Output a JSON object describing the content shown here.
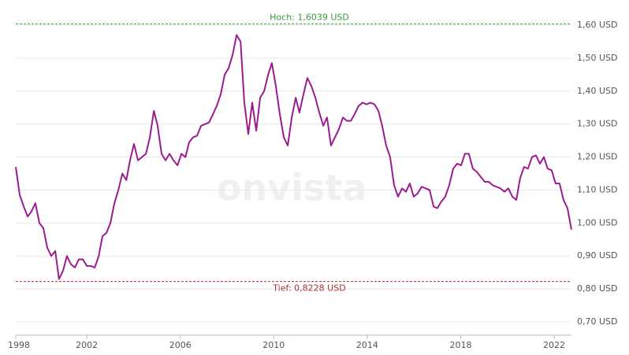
{
  "chart_data": {
    "type": "line",
    "watermark": "onvista",
    "x": [
      1998.96,
      1999.13,
      1999.3,
      1999.47,
      1999.63,
      1999.8,
      1999.97,
      2000.14,
      2000.31,
      2000.48,
      2000.65,
      2000.81,
      2000.98,
      2001.15,
      2001.32,
      2001.49,
      2001.66,
      2001.83,
      2002.0,
      2002.17,
      2002.34,
      2002.51,
      2002.67,
      2002.84,
      2003.01,
      2003.18,
      2003.35,
      2003.52,
      2003.69,
      2003.85,
      2004.02,
      2004.19,
      2004.36,
      2004.53,
      2004.7,
      2004.87,
      2005.03,
      2005.2,
      2005.37,
      2005.54,
      2005.71,
      2005.88,
      2006.05,
      2006.22,
      2006.38,
      2006.55,
      2006.72,
      2006.89,
      2007.06,
      2007.23,
      2007.4,
      2007.56,
      2007.73,
      2007.9,
      2008.07,
      2008.24,
      2008.41,
      2008.58,
      2008.74,
      2008.91,
      2009.08,
      2009.25,
      2009.42,
      2009.59,
      2009.76,
      2009.92,
      2010.09,
      2010.26,
      2010.43,
      2010.6,
      2010.77,
      2010.94,
      2011.1,
      2011.27,
      2011.44,
      2011.61,
      2011.78,
      2011.95,
      2012.12,
      2012.28,
      2012.45,
      2012.62,
      2012.79,
      2012.96,
      2013.13,
      2013.3,
      2013.46,
      2013.63,
      2013.8,
      2013.97,
      2014.14,
      2014.31,
      2014.48,
      2014.64,
      2014.81,
      2014.98,
      2015.15,
      2015.32,
      2015.49,
      2015.66,
      2015.82,
      2015.99,
      2016.16,
      2016.33,
      2016.5,
      2016.67,
      2016.84,
      2017.0,
      2017.17,
      2017.34,
      2017.51,
      2017.68,
      2017.85,
      2018.02,
      2018.18,
      2018.35,
      2018.52,
      2018.69,
      2018.86,
      2019.03,
      2019.2,
      2019.36,
      2019.53,
      2019.7,
      2019.87,
      2020.04,
      2020.21,
      2020.38,
      2020.54,
      2020.71,
      2020.88,
      2021.05,
      2021.22,
      2021.39,
      2021.56,
      2021.72,
      2021.89,
      2022.06,
      2022.23,
      2022.4,
      2022.57,
      2022.74
    ],
    "series": [
      {
        "color": "#9c1b91",
        "values": [
          1.17,
          1.085,
          1.05,
          1.02,
          1.035,
          1.06,
          1.0,
          0.985,
          0.925,
          0.9,
          0.915,
          0.83,
          0.855,
          0.9,
          0.875,
          0.865,
          0.89,
          0.89,
          0.87,
          0.87,
          0.865,
          0.9,
          0.96,
          0.97,
          1.0,
          1.06,
          1.1,
          1.15,
          1.13,
          1.19,
          1.24,
          1.19,
          1.2,
          1.21,
          1.26,
          1.34,
          1.295,
          1.21,
          1.19,
          1.21,
          1.19,
          1.175,
          1.21,
          1.2,
          1.245,
          1.26,
          1.265,
          1.295,
          1.3,
          1.305,
          1.33,
          1.355,
          1.39,
          1.45,
          1.47,
          1.51,
          1.57,
          1.55,
          1.365,
          1.27,
          1.365,
          1.28,
          1.38,
          1.4,
          1.45,
          1.485,
          1.415,
          1.33,
          1.26,
          1.235,
          1.32,
          1.38,
          1.335,
          1.39,
          1.44,
          1.415,
          1.38,
          1.335,
          1.295,
          1.32,
          1.235,
          1.26,
          1.285,
          1.32,
          1.31,
          1.31,
          1.33,
          1.355,
          1.365,
          1.36,
          1.365,
          1.36,
          1.34,
          1.295,
          1.235,
          1.2,
          1.115,
          1.08,
          1.105,
          1.095,
          1.12,
          1.08,
          1.09,
          1.11,
          1.105,
          1.1,
          1.05,
          1.045,
          1.065,
          1.08,
          1.115,
          1.165,
          1.18,
          1.175,
          1.21,
          1.21,
          1.165,
          1.155,
          1.14,
          1.125,
          1.125,
          1.115,
          1.11,
          1.105,
          1.095,
          1.105,
          1.08,
          1.07,
          1.135,
          1.17,
          1.165,
          1.2,
          1.205,
          1.18,
          1.2,
          1.165,
          1.16,
          1.12,
          1.12,
          1.07,
          1.045,
          0.98
        ]
      }
    ],
    "xlim": [
      1998.96,
      2022.74
    ],
    "xticks": [
      1998,
      2002,
      2006,
      2010,
      2014,
      2018,
      2022
    ],
    "ylim": [
      0.66,
      1.63
    ],
    "yticks": [
      {
        "value": 0.7,
        "label": "0,70 USD"
      },
      {
        "value": 0.8,
        "label": "0,80 USD"
      },
      {
        "value": 0.9,
        "label": "0,90 USD"
      },
      {
        "value": 1.0,
        "label": "1,00 USD"
      },
      {
        "value": 1.1,
        "label": "1,10 USD"
      },
      {
        "value": 1.2,
        "label": "1,20 USD"
      },
      {
        "value": 1.3,
        "label": "1,30 USD"
      },
      {
        "value": 1.4,
        "label": "1,40 USD"
      },
      {
        "value": 1.5,
        "label": "1,50 USD"
      },
      {
        "value": 1.6,
        "label": "1,60 USD"
      }
    ],
    "grid": true,
    "reference_lines": [
      {
        "label": "Hoch: 1,6039 USD",
        "value": 1.6039,
        "color": "#3a9a3a"
      },
      {
        "label": "Tief: 0,8228 USD",
        "value": 0.8228,
        "color": "#a83232"
      }
    ]
  }
}
